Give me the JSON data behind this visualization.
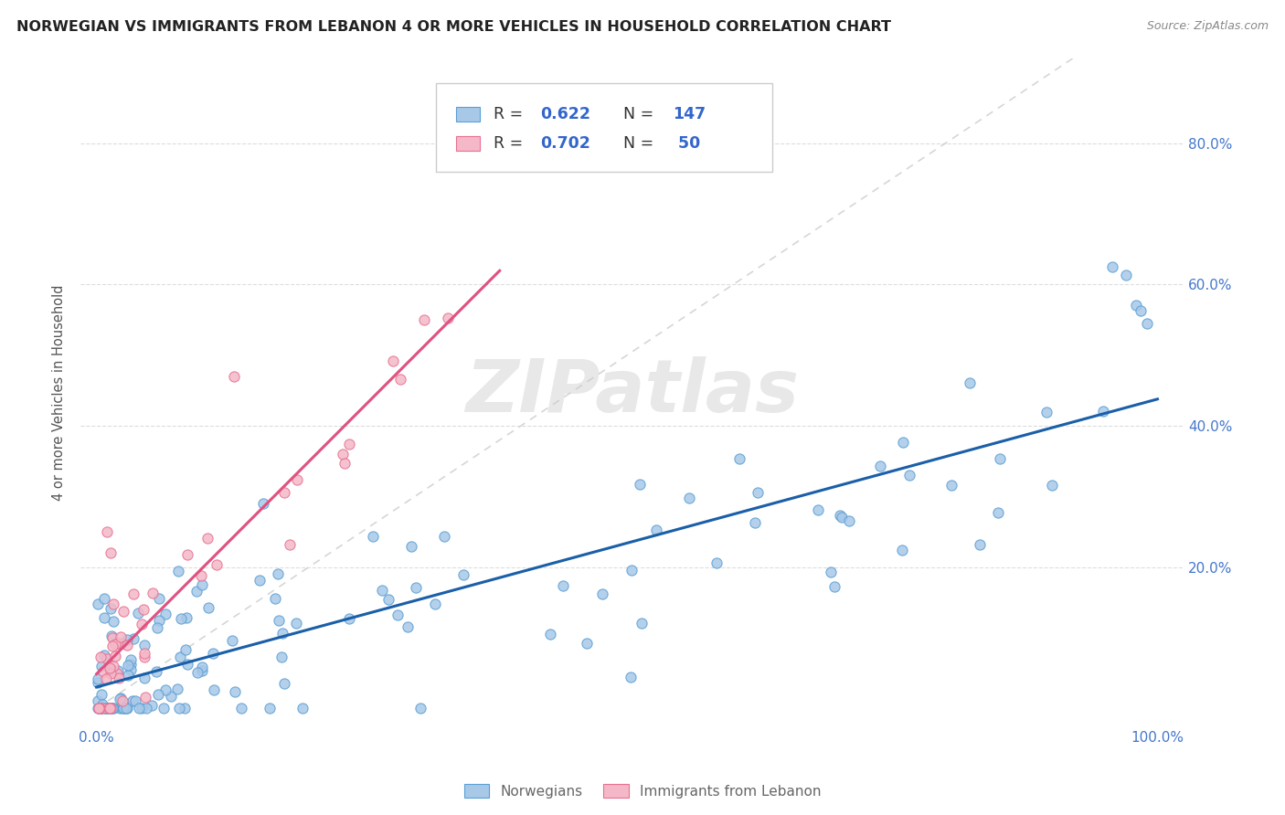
{
  "title": "NORWEGIAN VS IMMIGRANTS FROM LEBANON 4 OR MORE VEHICLES IN HOUSEHOLD CORRELATION CHART",
  "source": "Source: ZipAtlas.com",
  "ylabel": "4 or more Vehicles in Household",
  "norwegian_color": "#a8c8e8",
  "norwegian_edge": "#5a9fd4",
  "lebanon_color": "#f4b8c8",
  "lebanon_edge": "#e87090",
  "trendline_norwegian_color": "#1a5fa8",
  "trendline_lebanon_color": "#e05080",
  "diagonal_color": "#cccccc",
  "R_norwegian": 0.622,
  "N_norwegian": 147,
  "R_lebanon": 0.702,
  "N_lebanon": 50,
  "legend_label_norwegian": "Norwegians",
  "legend_label_lebanon": "Immigrants from Lebanon",
  "watermark_text": "ZIPatlas",
  "background_color": "#ffffff",
  "grid_color": "#dddddd",
  "tick_label_color": "#4477cc",
  "title_color": "#222222",
  "legend_R_N_color": "#3366cc",
  "legend_text_color": "#333333",
  "bottom_legend_text_color": "#666666"
}
